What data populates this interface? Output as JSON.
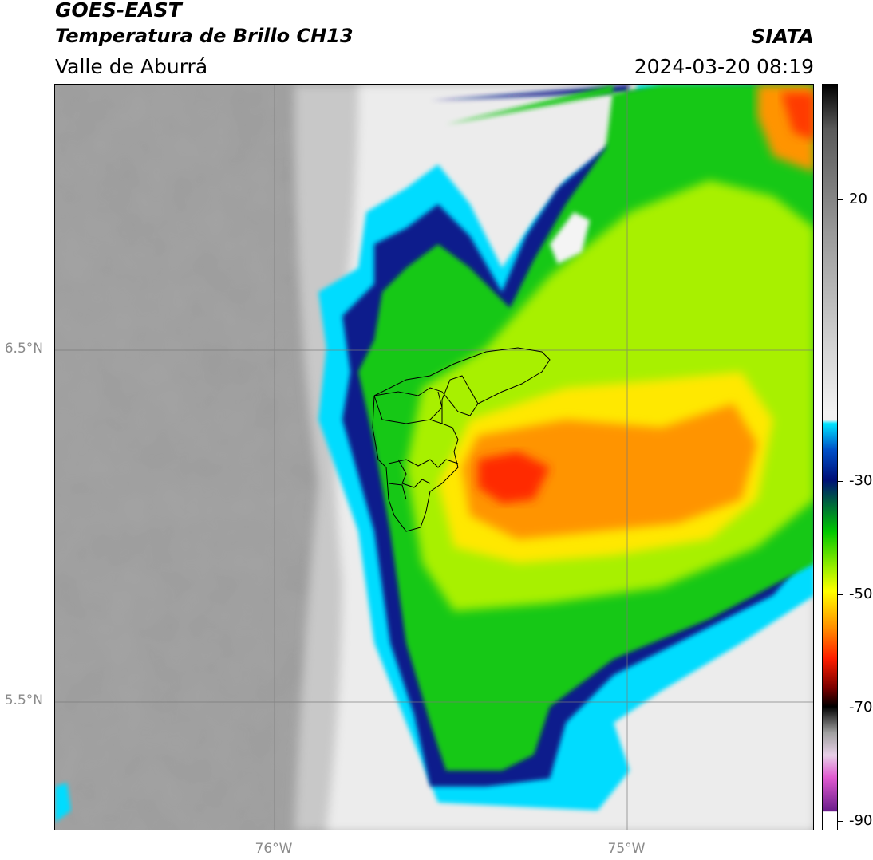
{
  "header": {
    "satellite": "GOES-EAST",
    "product": "Temperatura de Brillo CH13",
    "region": "Valle de Aburrá",
    "agency": "SIATA",
    "datetime": "2024-03-20 08:19"
  },
  "map": {
    "lat_labels": [
      "6.5°N",
      "5.5°N"
    ],
    "lon_labels": [
      "76°W",
      "75°W"
    ],
    "gridlines": true
  },
  "colorbar": {
    "ticks": [
      "20",
      "-30",
      "-50",
      "-70",
      "-90"
    ],
    "colors": {
      "warm_gray": "#9a9a9a",
      "white": "#f2f2f2",
      "cyan": "#00e5ff",
      "blue": "#0050c8",
      "navy": "#000f78",
      "green": "#00c800",
      "lime": "#9ff000",
      "yellow": "#ffff00",
      "orange": "#ff8c00",
      "red": "#ff1e00",
      "dark_red": "#7a0000",
      "black": "#000000",
      "magenta": "#e05ad0",
      "purple": "#6a1c8a"
    }
  }
}
